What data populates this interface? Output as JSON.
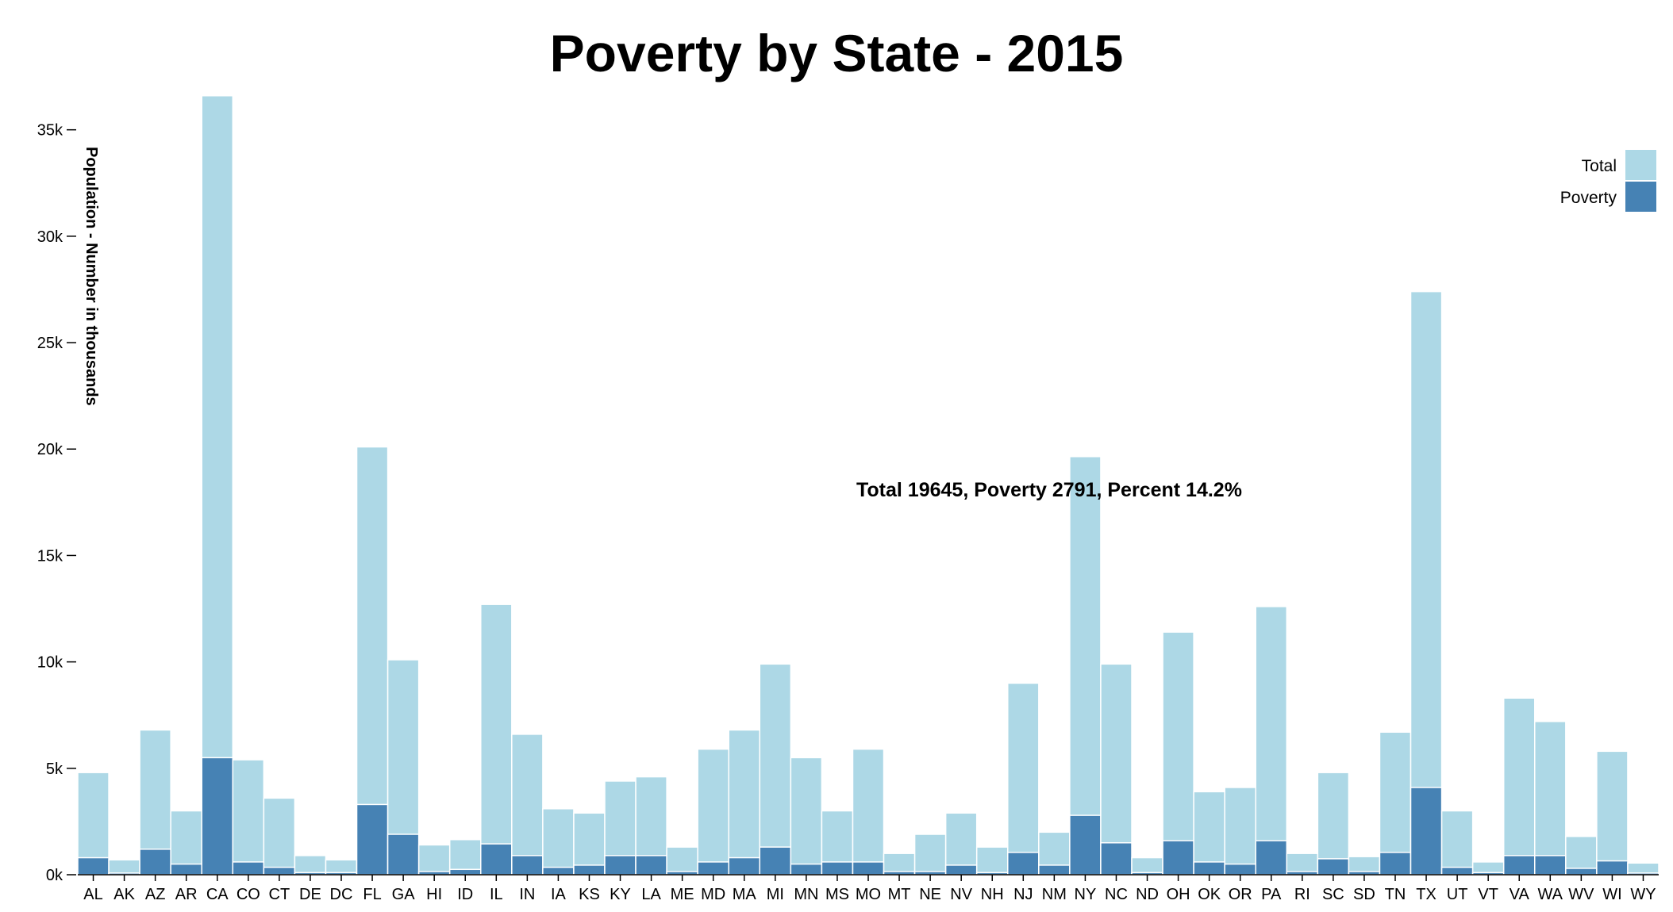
{
  "chart_data": {
    "type": "bar",
    "title": "Poverty by State - 2015",
    "ylabel": "Population - Number in thousands",
    "xlabel": "",
    "ylim": [
      0,
      37000
    ],
    "yticks": [
      0,
      5000,
      10000,
      15000,
      20000,
      25000,
      30000,
      35000
    ],
    "ytick_labels": [
      "0k",
      "5k",
      "10k",
      "15k",
      "20k",
      "25k",
      "30k",
      "35k"
    ],
    "grid": false,
    "legend_position": "top-right",
    "categories": [
      "AL",
      "AK",
      "AZ",
      "AR",
      "CA",
      "CO",
      "CT",
      "DE",
      "DC",
      "FL",
      "GA",
      "HI",
      "ID",
      "IL",
      "IN",
      "IA",
      "KS",
      "KY",
      "LA",
      "ME",
      "MD",
      "MA",
      "MI",
      "MN",
      "MS",
      "MO",
      "MT",
      "NE",
      "NV",
      "NH",
      "NJ",
      "NM",
      "NY",
      "NC",
      "ND",
      "OH",
      "OK",
      "OR",
      "PA",
      "RI",
      "SC",
      "SD",
      "TN",
      "TX",
      "UT",
      "VT",
      "VA",
      "WA",
      "WV",
      "WI",
      "WY"
    ],
    "series": [
      {
        "name": "Total",
        "color": "#add8e6",
        "values": [
          4800,
          700,
          6800,
          3000,
          36600,
          5400,
          3600,
          900,
          700,
          20100,
          10100,
          1400,
          1650,
          12700,
          6600,
          3100,
          2900,
          4400,
          4600,
          1300,
          5900,
          6800,
          9900,
          5500,
          3000,
          5900,
          1000,
          1900,
          2900,
          1300,
          9000,
          2000,
          19645,
          9900,
          800,
          11400,
          3900,
          4100,
          12600,
          1000,
          4800,
          850,
          6700,
          27400,
          3000,
          600,
          8300,
          7200,
          1800,
          5800,
          550
        ]
      },
      {
        "name": "Poverty",
        "color": "#4682b4",
        "values": [
          800,
          80,
          1200,
          500,
          5500,
          600,
          350,
          100,
          100,
          3300,
          1900,
          150,
          250,
          1450,
          900,
          350,
          450,
          900,
          900,
          150,
          600,
          800,
          1300,
          500,
          600,
          600,
          150,
          150,
          450,
          100,
          1050,
          450,
          2791,
          1500,
          100,
          1600,
          600,
          500,
          1600,
          150,
          750,
          150,
          1050,
          4100,
          350,
          100,
          900,
          900,
          300,
          650,
          80
        ]
      }
    ],
    "annotation": "Total 19645, Poverty 2791, Percent 14.2%",
    "annotation_anchor": "NY"
  }
}
